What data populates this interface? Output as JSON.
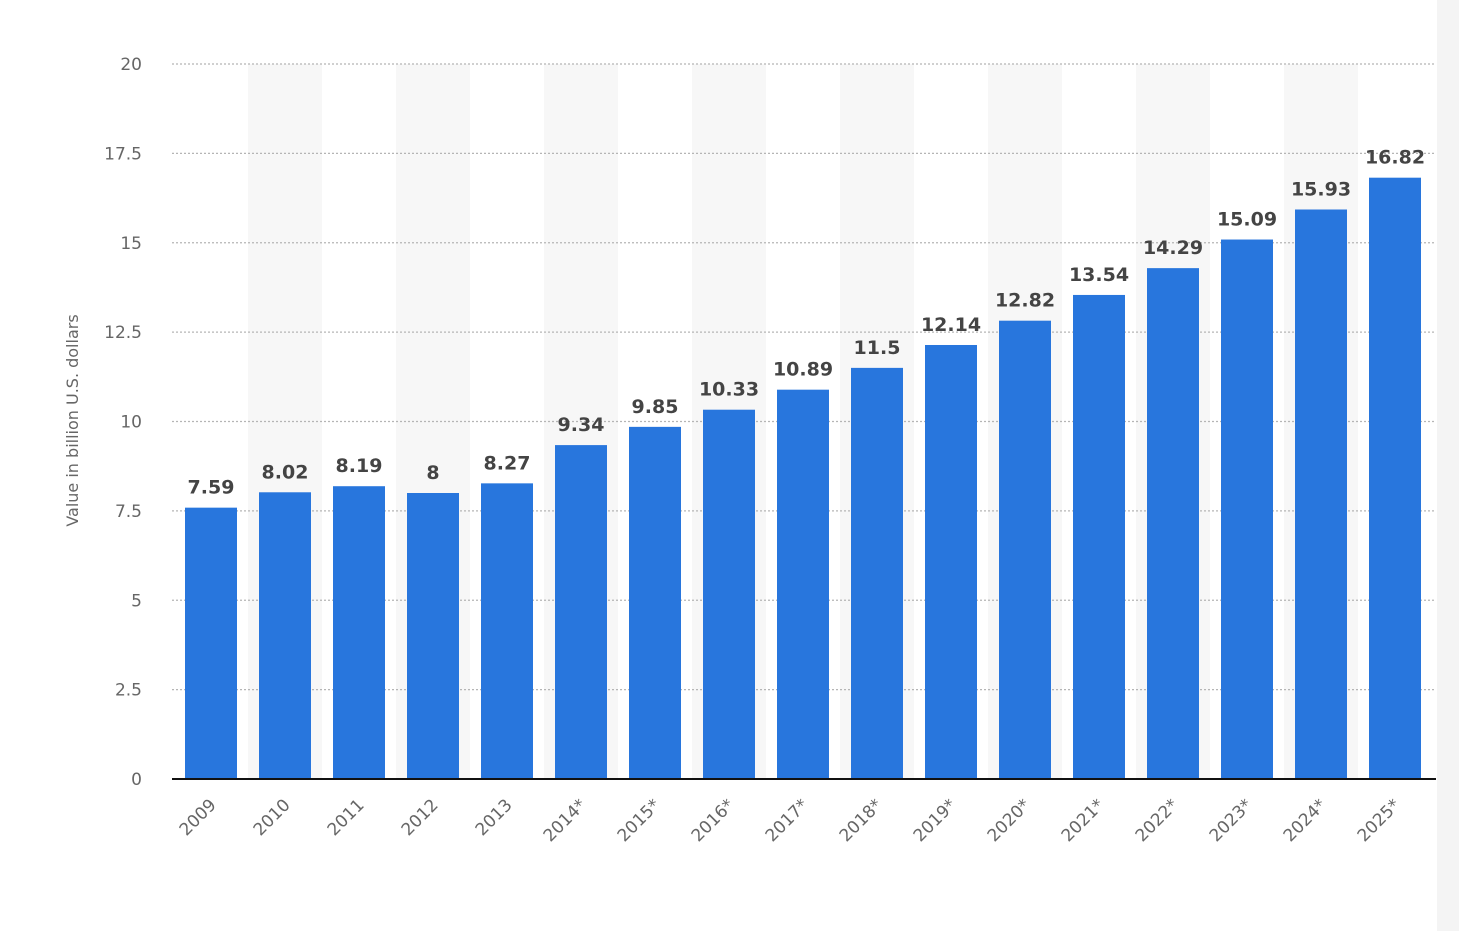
{
  "chart_data": {
    "type": "bar",
    "categories": [
      "2009",
      "2010",
      "2011",
      "2012",
      "2013",
      "2014*",
      "2015*",
      "2016*",
      "2017*",
      "2018*",
      "2019*",
      "2020*",
      "2021*",
      "2022*",
      "2023*",
      "2024*",
      "2025*"
    ],
    "values": [
      7.59,
      8.02,
      8.19,
      8,
      8.27,
      9.34,
      9.85,
      10.33,
      10.89,
      11.5,
      12.14,
      12.82,
      13.54,
      14.29,
      15.09,
      15.93,
      16.82
    ],
    "value_labels": [
      "7.59",
      "8.02",
      "8.19",
      "8",
      "8.27",
      "9.34",
      "9.85",
      "10.33",
      "10.89",
      "11.5",
      "12.14",
      "12.82",
      "13.54",
      "14.29",
      "15.09",
      "15.93",
      "16.82"
    ],
    "ylabel": "Value in billion U.S. dollars",
    "xlabel": "",
    "ylim": [
      0,
      20
    ],
    "yticks": [
      "0",
      "2.5",
      "5",
      "7.5",
      "10",
      "12.5",
      "15",
      "17.5",
      "20"
    ],
    "grid": true,
    "colors": {
      "bar": "#2876dd",
      "band": "#f7f7f7",
      "grid": "#b5b5b5",
      "axis": "#111111",
      "tick_label": "#666666",
      "value_label": "#444444"
    }
  }
}
